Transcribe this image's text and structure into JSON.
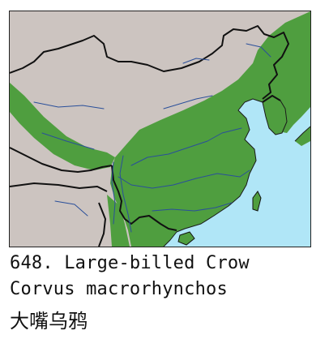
{
  "entry": {
    "number": "648.",
    "common_name": "Large-billed Crow",
    "scientific_name": "Corvus macrorhynchos",
    "chinese_name": "大嘴乌鸦"
  },
  "colors": {
    "land": "#ccc4c0",
    "sea": "#b0e6f7",
    "range": "#4f9e3f",
    "border": "#111111",
    "river": "#2a4f9a"
  },
  "icons": {
    "range": "species-range-shading",
    "borders": "national-border-lines",
    "rivers": "river-lines"
  }
}
